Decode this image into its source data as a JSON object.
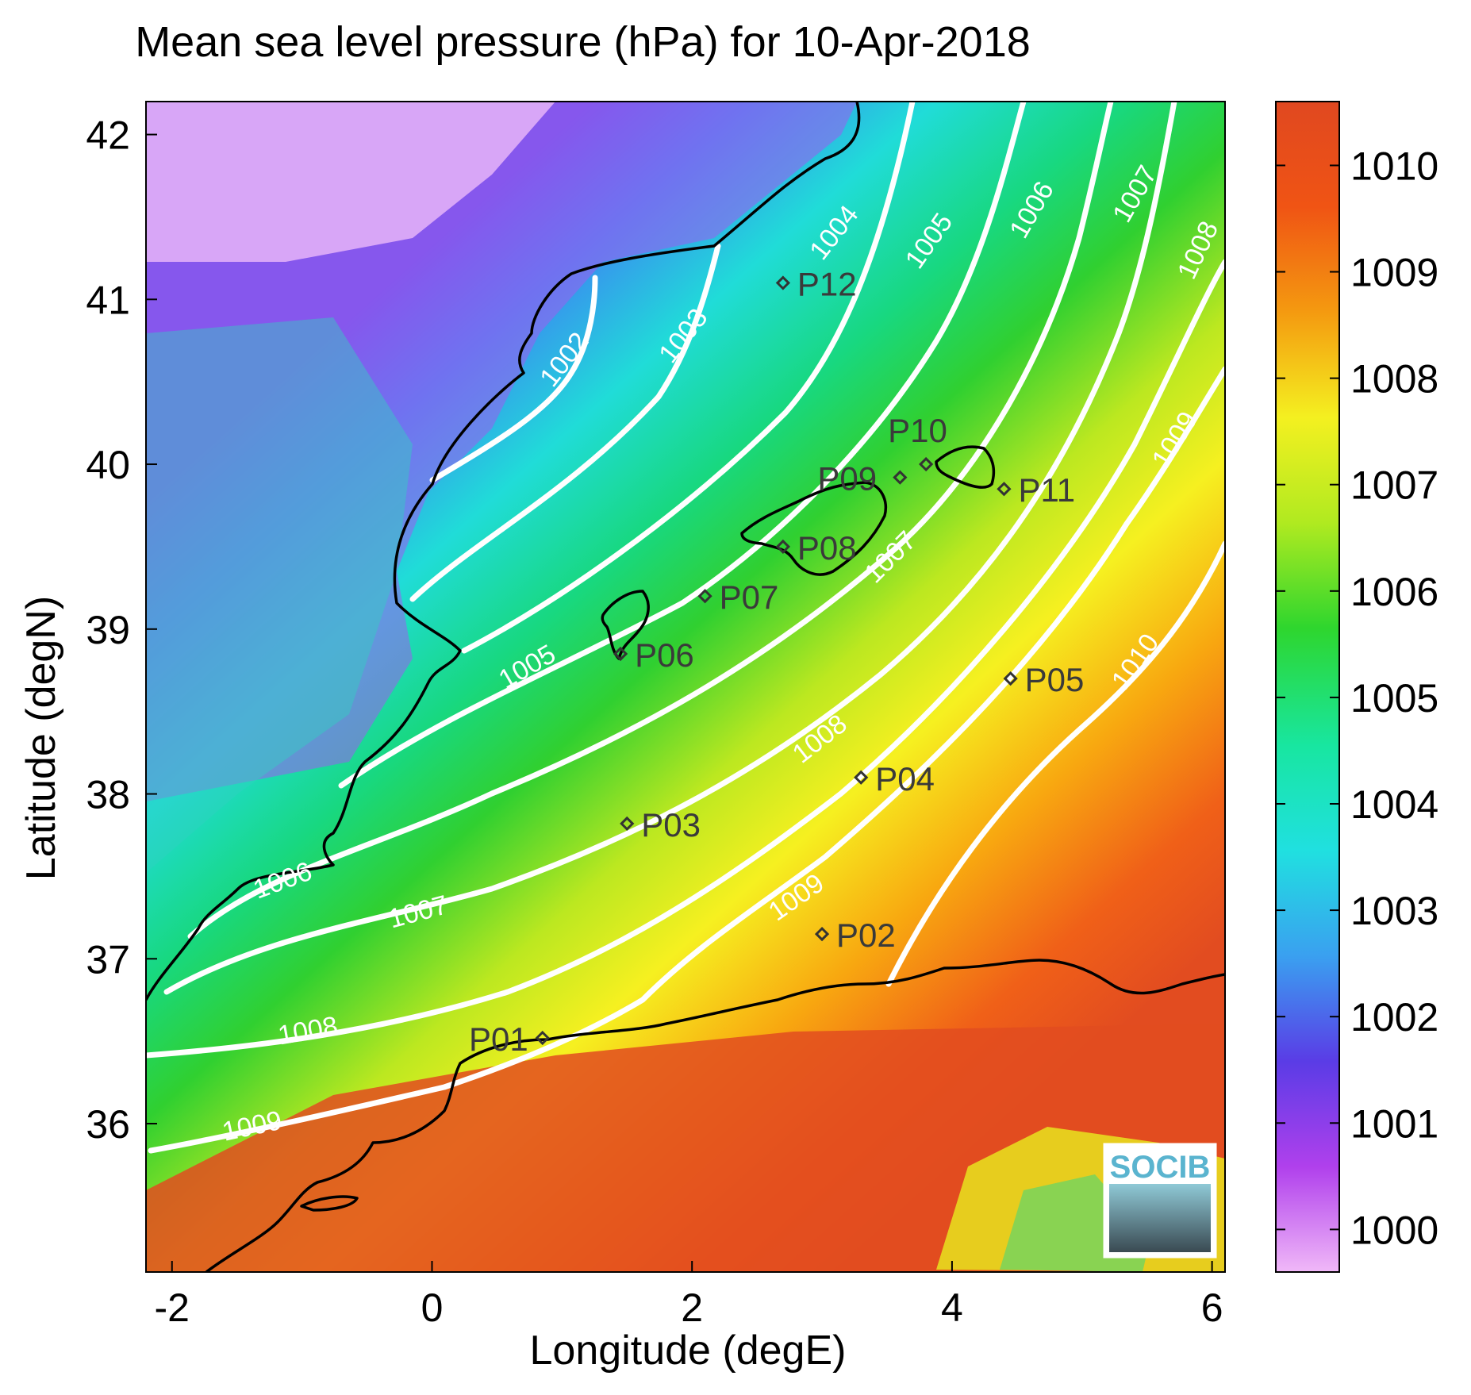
{
  "title": "Mean sea level pressure (hPa) for 10-Apr-2018",
  "axes": {
    "xlabel": "Longitude (degE)",
    "ylabel": "Latitude (degN)",
    "xlim": [
      -2.2,
      6.1
    ],
    "ylim": [
      35.1,
      42.2
    ],
    "xticks": [
      "-2",
      "0",
      "2",
      "4",
      "6"
    ],
    "yticks": [
      "36",
      "37",
      "38",
      "39",
      "40",
      "41",
      "42"
    ]
  },
  "colorbar": {
    "range": [
      999.6,
      1010.6
    ],
    "ticks": [
      "1000",
      "1001",
      "1002",
      "1003",
      "1004",
      "1005",
      "1006",
      "1007",
      "1008",
      "1009",
      "1010"
    ],
    "colors": [
      "#f0b8f8",
      "#b040ec",
      "#5a3ce6",
      "#3aa0f0",
      "#20e0e0",
      "#18e6a0",
      "#2ed62e",
      "#b0ea20",
      "#f4f020",
      "#f49a10",
      "#f05414",
      "#e04820"
    ]
  },
  "contour_labels": [
    "1002",
    "1003",
    "1004",
    "1005",
    "1006",
    "1007",
    "1008",
    "1009",
    "1010"
  ],
  "stations": [
    {
      "id": "P01",
      "lon": 0.85,
      "lat": 36.52
    },
    {
      "id": "P02",
      "lon": 3.0,
      "lat": 37.15
    },
    {
      "id": "P03",
      "lon": 1.5,
      "lat": 37.82
    },
    {
      "id": "P04",
      "lon": 3.3,
      "lat": 38.1
    },
    {
      "id": "P05",
      "lon": 4.45,
      "lat": 38.7
    },
    {
      "id": "P06",
      "lon": 1.45,
      "lat": 38.85
    },
    {
      "id": "P07",
      "lon": 2.1,
      "lat": 39.2
    },
    {
      "id": "P08",
      "lon": 2.7,
      "lat": 39.5
    },
    {
      "id": "P09",
      "lon": 3.6,
      "lat": 39.92
    },
    {
      "id": "P10",
      "lon": 3.8,
      "lat": 40.0
    },
    {
      "id": "P11",
      "lon": 4.4,
      "lat": 39.85
    },
    {
      "id": "P12",
      "lon": 2.7,
      "lat": 41.1
    }
  ],
  "logo": {
    "text": "SOCIB"
  }
}
